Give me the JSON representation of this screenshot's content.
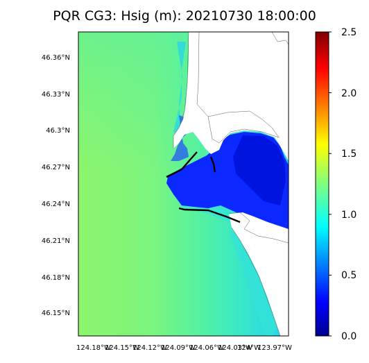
{
  "title": "PQR CG3: Hsig (m): 20210730 18:00:00",
  "map": {
    "variable": "Hsig",
    "units": "m",
    "lat_ticks": [
      "46.36°N",
      "46.33°N",
      "46.3°N",
      "46.27°N",
      "46.24°N",
      "46.21°N",
      "46.18°N",
      "46.15°N"
    ],
    "lon_ticks": [
      "124.18°W",
      "124.15°W",
      "124.12°W",
      "124.09°W",
      "124.06°W",
      "124.03°W",
      "124°W",
      "123.97°W"
    ]
  },
  "colorbar": {
    "colormap": "jet",
    "min": 0.0,
    "max": 2.5,
    "ticks": [
      "0.0",
      "0.5",
      "1.0",
      "1.5",
      "2.0",
      "2.5"
    ]
  },
  "colors": {
    "offshore": "#8cf56b",
    "mid": "#4ef0a8",
    "near_shore": "#2ad6e6",
    "estuary": "#0a28ff",
    "estuary_deep": "#0014e0",
    "land": "#ffffff",
    "jetty": "#000000"
  }
}
